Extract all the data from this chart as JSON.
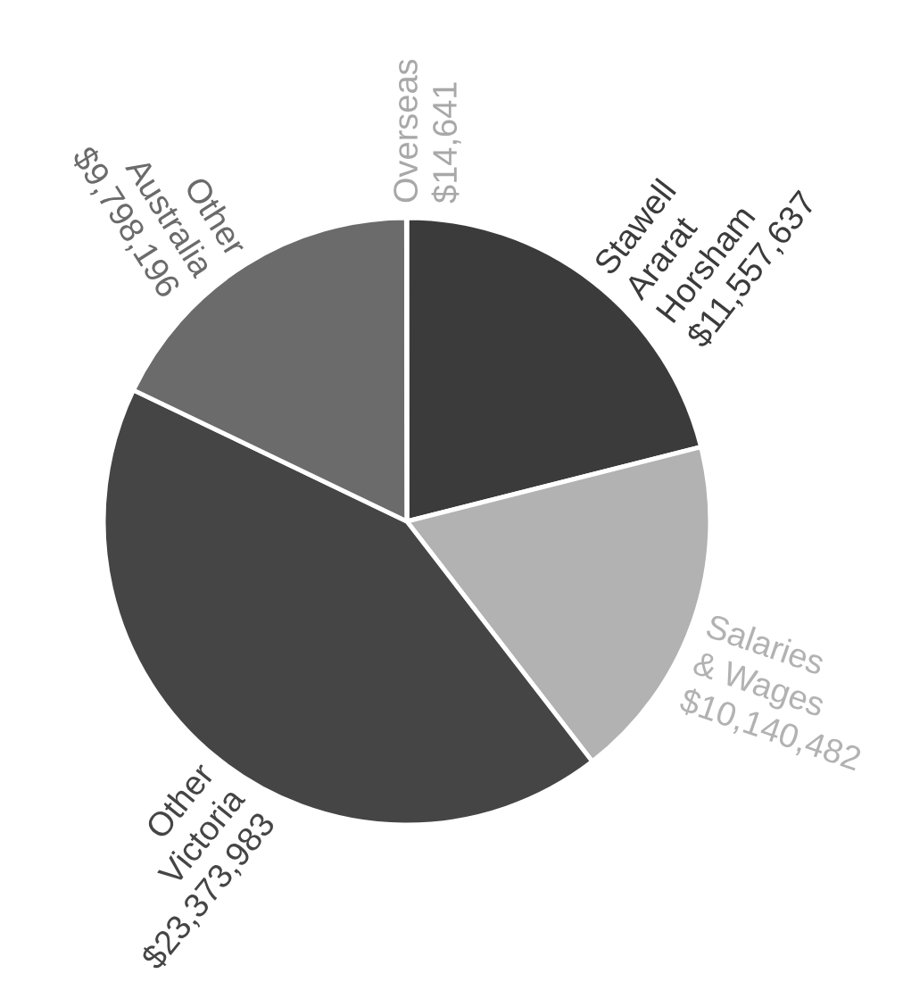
{
  "chart_data": {
    "type": "pie",
    "categories": [
      "Stawell Ararat Horsham",
      "Salaries & Wages",
      "Other Victoria",
      "Other Australia",
      "Overseas"
    ],
    "values": [
      11557637,
      10140482,
      23373983,
      9798196,
      14641
    ],
    "value_labels": [
      "$11,557,637",
      "$10,140,482",
      "$23,373,983",
      "$9,798,196",
      "$14,641"
    ],
    "colors": [
      "#3b3b3b",
      "#b2b2b2",
      "#454545",
      "#6b6b6b",
      "#a8a8a8"
    ]
  }
}
